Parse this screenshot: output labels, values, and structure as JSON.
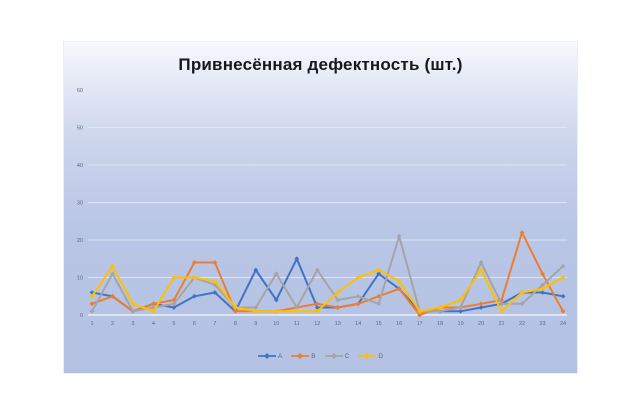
{
  "chart_data": {
    "type": "line",
    "title": "Привнесённая дефектность (шт.)",
    "x": [
      1,
      2,
      3,
      4,
      5,
      6,
      7,
      8,
      9,
      10,
      11,
      12,
      13,
      14,
      15,
      16,
      17,
      18,
      19,
      20,
      21,
      22,
      23,
      24
    ],
    "series": [
      {
        "name": "A",
        "color": "#4472c4",
        "values": [
          6,
          5,
          1,
          3,
          2,
          5,
          6,
          1,
          12,
          4,
          15,
          2,
          2,
          3,
          11,
          7,
          1,
          1,
          1,
          2,
          3,
          6,
          6,
          5
        ]
      },
      {
        "name": "B",
        "color": "#ed7d31",
        "values": [
          3,
          5,
          1,
          3,
          4,
          14,
          14,
          1,
          1,
          1,
          2,
          3,
          2,
          3,
          5,
          7,
          0,
          2,
          2,
          3,
          4,
          22,
          11,
          1
        ]
      },
      {
        "name": "C",
        "color": "#a5a5a5",
        "values": [
          1,
          11,
          1,
          2,
          3,
          10,
          8,
          2,
          2,
          11,
          2,
          12,
          4,
          5,
          3,
          21,
          1,
          1,
          2,
          14,
          3,
          3,
          8,
          13
        ]
      },
      {
        "name": "D",
        "color": "#ffc000",
        "values": [
          5,
          13,
          3,
          1,
          10,
          10,
          9,
          2,
          1,
          1,
          1,
          1,
          6,
          10,
          12,
          9,
          1,
          2,
          4,
          12,
          1,
          6,
          7,
          10
        ]
      }
    ],
    "ylim": [
      0,
      60
    ],
    "yticks": [
      0,
      10,
      20,
      30,
      40,
      50,
      60
    ],
    "xlabel": "",
    "ylabel": "",
    "grid": true,
    "legend_position": "bottom",
    "marker": "diamond"
  },
  "style": {
    "series_blue": "#4472c4",
    "series_orange": "#ed7d31",
    "series_gray": "#a5a5a5",
    "series_yellow": "#ffc000",
    "gridline": "#e6ebf6",
    "zero_line": "#f0f3fa",
    "axis_text": "#5d6a88",
    "title_color": "#17171d",
    "plot_bg_top": "#f6f8fc",
    "plot_bg_bottom": "#b3c1e3"
  }
}
